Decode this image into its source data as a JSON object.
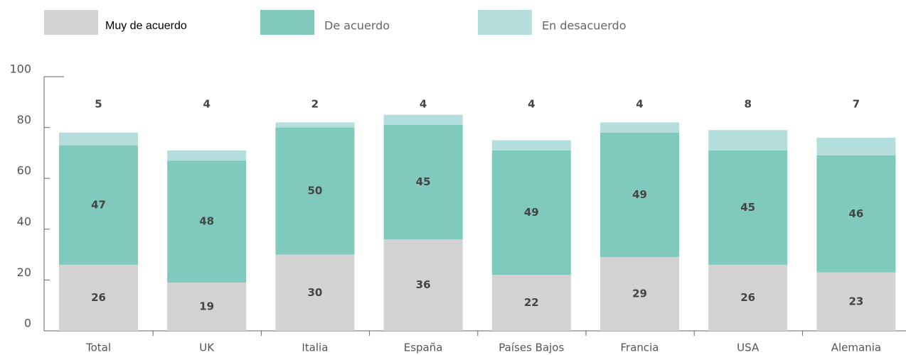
{
  "chart_data": {
    "type": "stacked_bar",
    "categories": [
      "Total",
      "UK",
      "Italia",
      "España",
      "Países Bajos",
      "Francia",
      "USA",
      "Alemania"
    ],
    "series": [
      {
        "name": "Muy de acuerdo",
        "color": "#d5d2d3",
        "values": [
          26,
          19,
          30,
          36,
          22,
          29,
          26,
          23
        ]
      },
      {
        "name": "De acuerdo",
        "color": "#80c9bd",
        "values": [
          47,
          48,
          50,
          45,
          49,
          49,
          45,
          46
        ]
      },
      {
        "name": "En desacuerdo",
        "color": "#b3dedb",
        "values": [
          5,
          4,
          2,
          4,
          4,
          4,
          8,
          7
        ]
      }
    ],
    "ylim": [
      0,
      100
    ],
    "yticks": [
      0,
      20,
      40,
      60,
      80,
      100
    ]
  }
}
